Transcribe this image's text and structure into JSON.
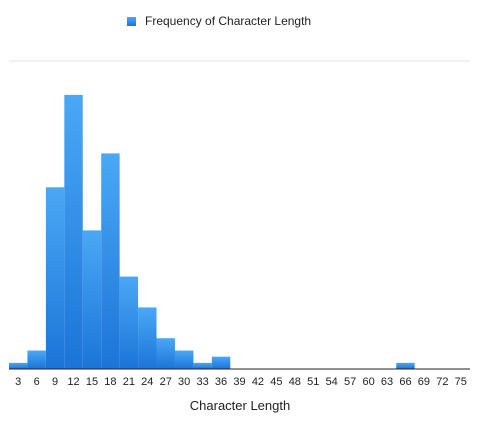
{
  "chart_data": {
    "type": "bar",
    "title": "",
    "xlabel": "Character Length",
    "ylabel": "",
    "legend": {
      "position": "top",
      "entries": [
        "Frequency of Character Length"
      ]
    },
    "grid": false,
    "categories": [
      "3",
      "6",
      "9",
      "12",
      "15",
      "18",
      "21",
      "24",
      "27",
      "30",
      "33",
      "36",
      "39",
      "42",
      "45",
      "48",
      "51",
      "54",
      "57",
      "60",
      "63",
      "66",
      "69",
      "72",
      "75"
    ],
    "series": [
      {
        "name": "Frequency of Character Length",
        "color": "#2787e8",
        "values": [
          2,
          6,
          59,
          89,
          45,
          70,
          30,
          20,
          10,
          6,
          2,
          4,
          0,
          0,
          0,
          0,
          0,
          0,
          0,
          0,
          0,
          2,
          0,
          0,
          0
        ]
      }
    ],
    "ylim": [
      0,
      100
    ]
  }
}
